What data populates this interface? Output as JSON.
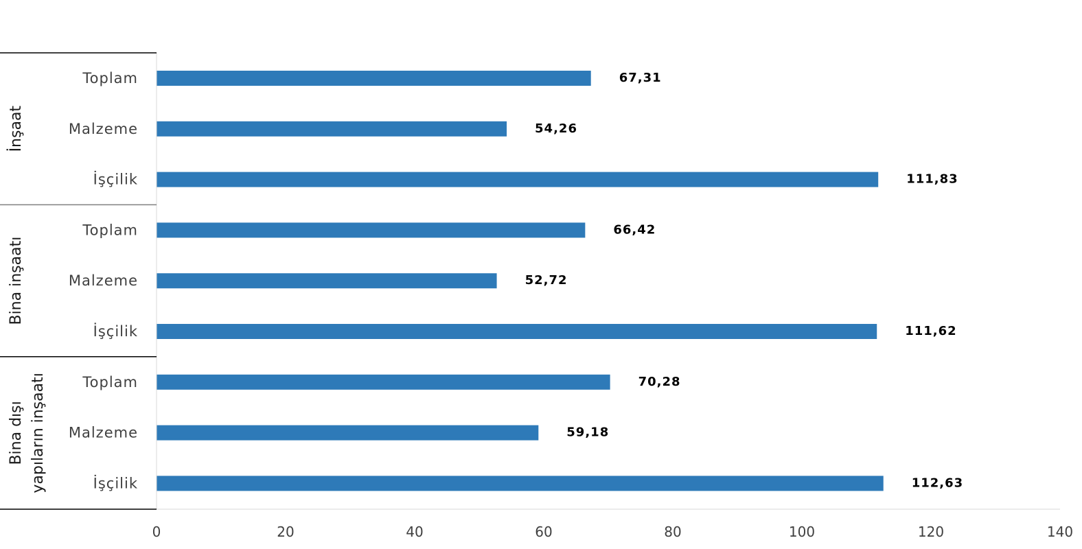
{
  "chart_data": {
    "type": "bar",
    "orientation": "horizontal",
    "title": "",
    "xlabel": "",
    "ylabel": "",
    "xlim": [
      0,
      140
    ],
    "x_ticks": [
      "0",
      "20",
      "40",
      "60",
      "80",
      "100",
      "120",
      "140"
    ],
    "grid": false,
    "legend": "none",
    "bar_color": "#2E7AB8",
    "groups": [
      {
        "name": "İnşaat",
        "name_lines": [
          "İnşaat"
        ],
        "categories": [
          "Toplam",
          "Malzeme",
          "İşçilik"
        ],
        "values": [
          67.31,
          54.26,
          111.83
        ],
        "value_labels": [
          "67,31",
          "54,26",
          "111,83"
        ]
      },
      {
        "name": "Bina inşaatı",
        "name_lines": [
          "Bina inşaatı"
        ],
        "categories": [
          "Toplam",
          "Malzeme",
          "İşçilik"
        ],
        "values": [
          66.42,
          52.72,
          111.62
        ],
        "value_labels": [
          "66,42",
          "52,72",
          "111,62"
        ]
      },
      {
        "name": "Bina dışı yapıların inşaatı",
        "name_lines": [
          "Bina dışı",
          "yapıların inşaatı"
        ],
        "categories": [
          "Toplam",
          "Malzeme",
          "İşçilik"
        ],
        "values": [
          70.28,
          59.18,
          112.63
        ],
        "value_labels": [
          "70,28",
          "59,18",
          "112,63"
        ]
      }
    ]
  }
}
